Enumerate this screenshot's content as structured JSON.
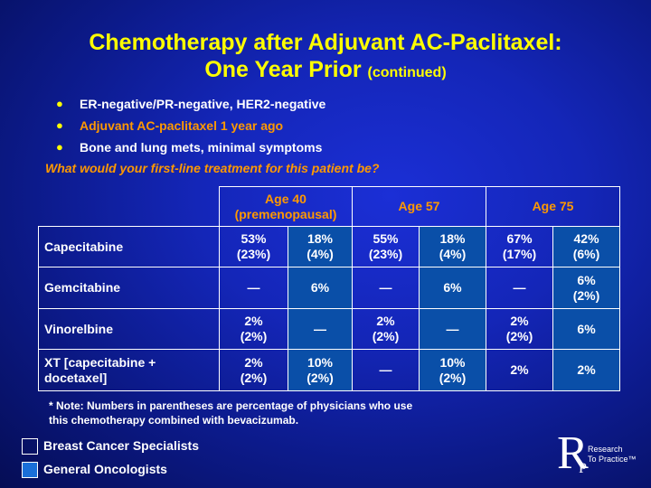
{
  "slide": {
    "title_line1": "Chemotherapy after Adjuvant AC-Paclitaxel:",
    "title_line2": "One Year Prior",
    "title_continued": "(continued)",
    "bullets": [
      "ER-negative/PR-negative, HER2-negative",
      "Adjuvant AC-paclitaxel 1 year ago",
      "Bone and lung mets, minimal symptoms"
    ],
    "bullet_glyph": "●",
    "question": "What would your first-line treatment for this patient be?",
    "highlight_color": "#ff9900",
    "title_color": "#ffff00"
  },
  "table": {
    "headers": [
      {
        "line1": "Age 40",
        "line2": "(premenopausal)"
      },
      {
        "line1": "Age 57",
        "line2": ""
      },
      {
        "line1": "Age 75",
        "line2": ""
      }
    ],
    "rows": [
      {
        "label_line1": "Capecitabine",
        "label_line2": "",
        "cells": [
          {
            "l1": "53%",
            "l2": "(23%)"
          },
          {
            "l1": "18%",
            "l2": "(4%)"
          },
          {
            "l1": "55%",
            "l2": "(23%)"
          },
          {
            "l1": "18%",
            "l2": "(4%)"
          },
          {
            "l1": "67%",
            "l2": "(17%)"
          },
          {
            "l1": "42%",
            "l2": "(6%)"
          }
        ]
      },
      {
        "label_line1": "Gemcitabine",
        "label_line2": "",
        "cells": [
          {
            "l1": "—",
            "l2": ""
          },
          {
            "l1": "6%",
            "l2": ""
          },
          {
            "l1": "—",
            "l2": ""
          },
          {
            "l1": "6%",
            "l2": ""
          },
          {
            "l1": "—",
            "l2": ""
          },
          {
            "l1": "6%",
            "l2": "(2%)"
          }
        ]
      },
      {
        "label_line1": "Vinorelbine",
        "label_line2": "",
        "cells": [
          {
            "l1": "2%",
            "l2": "(2%)"
          },
          {
            "l1": "—",
            "l2": ""
          },
          {
            "l1": "2%",
            "l2": "(2%)"
          },
          {
            "l1": "—",
            "l2": ""
          },
          {
            "l1": "2%",
            "l2": "(2%)"
          },
          {
            "l1": "6%",
            "l2": ""
          }
        ]
      },
      {
        "label_line1": "XT [capecitabine +",
        "label_line2": "docetaxel]",
        "cells": [
          {
            "l1": "2%",
            "l2": "(2%)"
          },
          {
            "l1": "10%",
            "l2": "(2%)"
          },
          {
            "l1": "—",
            "l2": ""
          },
          {
            "l1": "10%",
            "l2": "(2%)"
          },
          {
            "l1": "2%",
            "l2": ""
          },
          {
            "l1": "2%",
            "l2": ""
          }
        ]
      }
    ]
  },
  "note": {
    "line1": "* Note: Numbers in parentheses are percentage of physicians who use",
    "line2": "this chemotherapy combined with bevacizumab."
  },
  "legend": {
    "items": [
      {
        "label": "Breast Cancer Specialists"
      },
      {
        "label": "General Oncologists",
        "color": "#1a6fd8"
      }
    ]
  },
  "logo": {
    "letter_r": "R",
    "letter_p": "P",
    "text_line1": "Research",
    "text_line2": "To Practice™"
  }
}
